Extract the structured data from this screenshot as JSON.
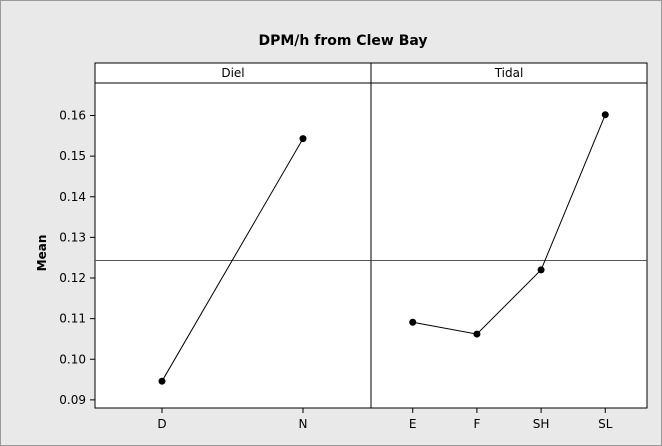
{
  "chart_data": {
    "type": "line",
    "title": "DPM/h from Clew Bay",
    "ylabel": "Mean",
    "xlabel": "",
    "ylim": [
      0.088,
      0.168
    ],
    "yticks": [
      0.09,
      0.1,
      0.11,
      0.12,
      0.13,
      0.14,
      0.15,
      0.16
    ],
    "ytick_labels": [
      "0.09",
      "0.10",
      "0.11",
      "0.12",
      "0.13",
      "0.14",
      "0.15",
      "0.16"
    ],
    "reference_line": 0.1243,
    "marker": "circle",
    "panels": [
      {
        "label": "Diel",
        "categories": [
          "D",
          "N"
        ],
        "values": [
          0.0946,
          0.1543
        ]
      },
      {
        "label": "Tidal",
        "categories": [
          "E",
          "F",
          "SH",
          "SL"
        ],
        "values": [
          0.1091,
          0.1062,
          0.122,
          0.1602
        ]
      }
    ],
    "colors": {
      "frame": "#e9e9e9",
      "plot": "#ffffff",
      "line": "#000000"
    }
  }
}
